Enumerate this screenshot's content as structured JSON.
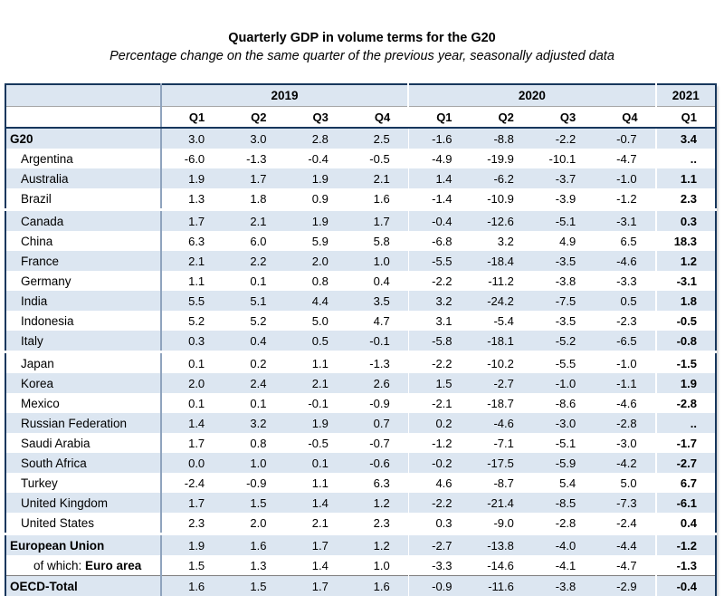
{
  "chart_data": {
    "type": "table",
    "title": "Quarterly GDP in volume terms for the G20",
    "subtitle": "Percentage change on the same quarter of the previous year, seasonally adjusted data",
    "missing_value_symbol": "..",
    "column_groups": [
      {
        "label": "2019",
        "span": 4
      },
      {
        "label": "2020",
        "span": 4
      },
      {
        "label": "2021",
        "span": 1
      }
    ],
    "columns": [
      "Q1",
      "Q2",
      "Q3",
      "Q4",
      "Q1",
      "Q2",
      "Q3",
      "Q4",
      "Q1"
    ],
    "rows": [
      {
        "label": "G20",
        "bold": true,
        "indent": 0,
        "gap_after": false,
        "sep_before": false,
        "values": [
          "3.0",
          "3.0",
          "2.8",
          "2.5",
          "-1.6",
          "-8.8",
          "-2.2",
          "-0.7",
          "3.4"
        ]
      },
      {
        "label": "Argentina",
        "bold": false,
        "indent": 1,
        "gap_after": false,
        "sep_before": false,
        "values": [
          "-6.0",
          "-1.3",
          "-0.4",
          "-0.5",
          "-4.9",
          "-19.9",
          "-10.1",
          "-4.7",
          ".."
        ]
      },
      {
        "label": "Australia",
        "bold": false,
        "indent": 1,
        "gap_after": false,
        "sep_before": false,
        "values": [
          "1.9",
          "1.7",
          "1.9",
          "2.1",
          "1.4",
          "-6.2",
          "-3.7",
          "-1.0",
          "1.1"
        ]
      },
      {
        "label": "Brazil",
        "bold": false,
        "indent": 1,
        "gap_after": true,
        "sep_before": false,
        "values": [
          "1.3",
          "1.8",
          "0.9",
          "1.6",
          "-1.4",
          "-10.9",
          "-3.9",
          "-1.2",
          "2.3"
        ]
      },
      {
        "label": "Canada",
        "bold": false,
        "indent": 1,
        "gap_after": false,
        "sep_before": false,
        "values": [
          "1.7",
          "2.1",
          "1.9",
          "1.7",
          "-0.4",
          "-12.6",
          "-5.1",
          "-3.1",
          "0.3"
        ]
      },
      {
        "label": "China",
        "bold": false,
        "indent": 1,
        "gap_after": false,
        "sep_before": false,
        "values": [
          "6.3",
          "6.0",
          "5.9",
          "5.8",
          "-6.8",
          "3.2",
          "4.9",
          "6.5",
          "18.3"
        ]
      },
      {
        "label": "France",
        "bold": false,
        "indent": 1,
        "gap_after": false,
        "sep_before": false,
        "values": [
          "2.1",
          "2.2",
          "2.0",
          "1.0",
          "-5.5",
          "-18.4",
          "-3.5",
          "-4.6",
          "1.2"
        ]
      },
      {
        "label": "Germany",
        "bold": false,
        "indent": 1,
        "gap_after": false,
        "sep_before": false,
        "values": [
          "1.1",
          "0.1",
          "0.8",
          "0.4",
          "-2.2",
          "-11.2",
          "-3.8",
          "-3.3",
          "-3.1"
        ]
      },
      {
        "label": "India",
        "bold": false,
        "indent": 1,
        "gap_after": false,
        "sep_before": false,
        "values": [
          "5.5",
          "5.1",
          "4.4",
          "3.5",
          "3.2",
          "-24.2",
          "-7.5",
          "0.5",
          "1.8"
        ]
      },
      {
        "label": "Indonesia",
        "bold": false,
        "indent": 1,
        "gap_after": false,
        "sep_before": false,
        "values": [
          "5.2",
          "5.2",
          "5.0",
          "4.7",
          "3.1",
          "-5.4",
          "-3.5",
          "-2.3",
          "-0.5"
        ]
      },
      {
        "label": "Italy",
        "bold": false,
        "indent": 1,
        "gap_after": true,
        "sep_before": false,
        "values": [
          "0.3",
          "0.4",
          "0.5",
          "-0.1",
          "-5.8",
          "-18.1",
          "-5.2",
          "-6.5",
          "-0.8"
        ]
      },
      {
        "label": "Japan",
        "bold": false,
        "indent": 1,
        "gap_after": false,
        "sep_before": false,
        "values": [
          "0.1",
          "0.2",
          "1.1",
          "-1.3",
          "-2.2",
          "-10.2",
          "-5.5",
          "-1.0",
          "-1.5"
        ]
      },
      {
        "label": "Korea",
        "bold": false,
        "indent": 1,
        "gap_after": false,
        "sep_before": false,
        "values": [
          "2.0",
          "2.4",
          "2.1",
          "2.6",
          "1.5",
          "-2.7",
          "-1.0",
          "-1.1",
          "1.9"
        ]
      },
      {
        "label": "Mexico",
        "bold": false,
        "indent": 1,
        "gap_after": false,
        "sep_before": false,
        "values": [
          "0.1",
          "0.1",
          "-0.1",
          "-0.9",
          "-2.1",
          "-18.7",
          "-8.6",
          "-4.6",
          "-2.8"
        ]
      },
      {
        "label": "Russian Federation",
        "bold": false,
        "indent": 1,
        "gap_after": false,
        "sep_before": false,
        "values": [
          "1.4",
          "3.2",
          "1.9",
          "0.7",
          "0.2",
          "-4.6",
          "-3.0",
          "-2.8",
          ".."
        ]
      },
      {
        "label": "Saudi Arabia",
        "bold": false,
        "indent": 1,
        "gap_after": false,
        "sep_before": false,
        "values": [
          "1.7",
          "0.8",
          "-0.5",
          "-0.7",
          "-1.2",
          "-7.1",
          "-5.1",
          "-3.0",
          "-1.7"
        ]
      },
      {
        "label": "South Africa",
        "bold": false,
        "indent": 1,
        "gap_after": false,
        "sep_before": false,
        "values": [
          "0.0",
          "1.0",
          "0.1",
          "-0.6",
          "-0.2",
          "-17.5",
          "-5.9",
          "-4.2",
          "-2.7"
        ]
      },
      {
        "label": "Turkey",
        "bold": false,
        "indent": 1,
        "gap_after": false,
        "sep_before": false,
        "values": [
          "-2.4",
          "-0.9",
          "1.1",
          "6.3",
          "4.6",
          "-8.7",
          "5.4",
          "5.0",
          "6.7"
        ]
      },
      {
        "label": "United Kingdom",
        "bold": false,
        "indent": 1,
        "gap_after": false,
        "sep_before": false,
        "values": [
          "1.7",
          "1.5",
          "1.4",
          "1.2",
          "-2.2",
          "-21.4",
          "-8.5",
          "-7.3",
          "-6.1"
        ]
      },
      {
        "label": "United States",
        "bold": false,
        "indent": 1,
        "gap_after": true,
        "sep_before": false,
        "values": [
          "2.3",
          "2.0",
          "2.1",
          "2.3",
          "0.3",
          "-9.0",
          "-2.8",
          "-2.4",
          "0.4"
        ]
      },
      {
        "label": "European Union",
        "bold": true,
        "indent": 0,
        "gap_after": false,
        "sep_before": false,
        "values": [
          "1.9",
          "1.6",
          "1.7",
          "1.2",
          "-2.7",
          "-13.8",
          "-4.0",
          "-4.4",
          "-1.2"
        ]
      },
      {
        "label": "Euro area",
        "label_prefix": "of which: ",
        "bold": true,
        "indent": 2,
        "gap_after": false,
        "sep_before": false,
        "values": [
          "1.5",
          "1.3",
          "1.4",
          "1.0",
          "-3.3",
          "-14.6",
          "-4.1",
          "-4.7",
          "-1.3"
        ]
      },
      {
        "label": "OECD-Total",
        "bold": true,
        "indent": 0,
        "gap_after": false,
        "sep_before": true,
        "values": [
          "1.6",
          "1.5",
          "1.7",
          "1.6",
          "-0.9",
          "-11.6",
          "-3.8",
          "-2.9",
          "-0.4"
        ]
      }
    ]
  },
  "colors": {
    "row_stripe": "#dce6f1",
    "header_band": "#dce6f1",
    "outer_border": "#17375d",
    "label_column_separator": "#8fa3bd",
    "header_grid_line": "#a6a6a6",
    "text": "#000000",
    "background": "#ffffff"
  }
}
